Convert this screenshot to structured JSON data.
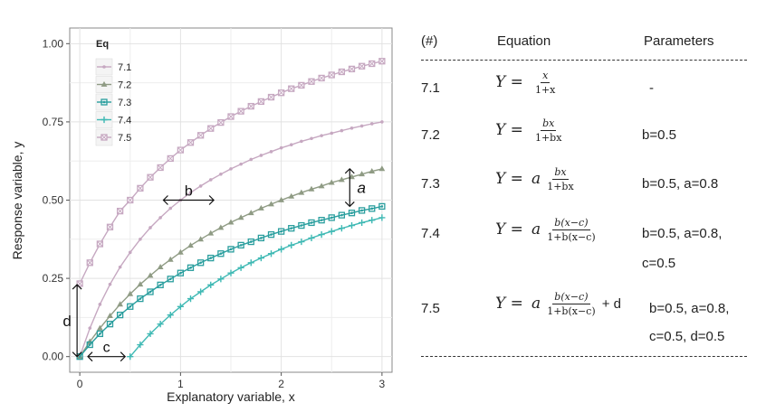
{
  "chart_data": {
    "type": "line",
    "xlabel": "Explanatory variable, x",
    "ylabel": "Response variable, y",
    "xlim": [
      -0.1,
      3.1
    ],
    "ylim": [
      -0.05,
      1.05
    ],
    "x_ticks": [
      "0",
      "1",
      "2",
      "3"
    ],
    "y_ticks": [
      "0.00",
      "0.25",
      "0.50",
      "0.75",
      "1.00"
    ],
    "grid": true,
    "legend_title": "Eq",
    "legend_position": "top-left",
    "series": [
      {
        "name": "7.1",
        "color": "#c6a8c1",
        "marker": "dot",
        "x": [
          0,
          0.1,
          0.2,
          0.3,
          0.4,
          0.5,
          0.6,
          0.7,
          0.8,
          0.9,
          1.0,
          1.1,
          1.2,
          1.3,
          1.4,
          1.5,
          1.6,
          1.7,
          1.8,
          1.9,
          2.0,
          2.1,
          2.2,
          2.3,
          2.4,
          2.5,
          2.6,
          2.7,
          2.8,
          2.9,
          3.0
        ],
        "y": [
          0.0,
          0.091,
          0.167,
          0.231,
          0.286,
          0.333,
          0.375,
          0.412,
          0.444,
          0.474,
          0.5,
          0.524,
          0.545,
          0.565,
          0.583,
          0.6,
          0.615,
          0.63,
          0.643,
          0.655,
          0.667,
          0.677,
          0.688,
          0.697,
          0.706,
          0.714,
          0.722,
          0.73,
          0.737,
          0.744,
          0.75
        ]
      },
      {
        "name": "7.2",
        "color": "#8f9b84",
        "marker": "triangle",
        "x": [
          0,
          0.1,
          0.2,
          0.3,
          0.4,
          0.5,
          0.6,
          0.7,
          0.8,
          0.9,
          1.0,
          1.1,
          1.2,
          1.3,
          1.4,
          1.5,
          1.6,
          1.7,
          1.8,
          1.9,
          2.0,
          2.1,
          2.2,
          2.3,
          2.4,
          2.5,
          2.6,
          2.7,
          2.8,
          2.9,
          3.0
        ],
        "y": [
          0.0,
          0.048,
          0.091,
          0.13,
          0.167,
          0.2,
          0.231,
          0.259,
          0.286,
          0.31,
          0.333,
          0.355,
          0.375,
          0.394,
          0.412,
          0.429,
          0.444,
          0.459,
          0.474,
          0.487,
          0.5,
          0.512,
          0.524,
          0.535,
          0.545,
          0.556,
          0.565,
          0.574,
          0.583,
          0.592,
          0.6
        ]
      },
      {
        "name": "7.3",
        "color": "#2a9e9e",
        "marker": "square-dot",
        "x": [
          0,
          0.1,
          0.2,
          0.3,
          0.4,
          0.5,
          0.6,
          0.7,
          0.8,
          0.9,
          1.0,
          1.1,
          1.2,
          1.3,
          1.4,
          1.5,
          1.6,
          1.7,
          1.8,
          1.9,
          2.0,
          2.1,
          2.2,
          2.3,
          2.4,
          2.5,
          2.6,
          2.7,
          2.8,
          2.9,
          3.0
        ],
        "y": [
          0.0,
          0.038,
          0.073,
          0.104,
          0.133,
          0.16,
          0.185,
          0.207,
          0.229,
          0.248,
          0.267,
          0.284,
          0.3,
          0.315,
          0.329,
          0.343,
          0.356,
          0.367,
          0.379,
          0.39,
          0.4,
          0.41,
          0.419,
          0.428,
          0.436,
          0.444,
          0.452,
          0.459,
          0.467,
          0.473,
          0.48
        ]
      },
      {
        "name": "7.4",
        "color": "#3fb9b4",
        "marker": "plus",
        "x": [
          0.5,
          0.6,
          0.7,
          0.8,
          0.9,
          1.0,
          1.1,
          1.2,
          1.3,
          1.4,
          1.5,
          1.6,
          1.7,
          1.8,
          1.9,
          2.0,
          2.1,
          2.2,
          2.3,
          2.4,
          2.5,
          2.6,
          2.7,
          2.8,
          2.9,
          3.0
        ],
        "y": [
          0.0,
          0.038,
          0.073,
          0.104,
          0.133,
          0.16,
          0.185,
          0.207,
          0.229,
          0.248,
          0.267,
          0.284,
          0.3,
          0.315,
          0.329,
          0.343,
          0.356,
          0.367,
          0.379,
          0.39,
          0.4,
          0.41,
          0.419,
          0.428,
          0.436,
          0.444
        ]
      },
      {
        "name": "7.5",
        "color": "#c6a8c1",
        "marker": "square-x",
        "x": [
          0,
          0.1,
          0.2,
          0.3,
          0.4,
          0.5,
          0.6,
          0.7,
          0.8,
          0.9,
          1.0,
          1.1,
          1.2,
          1.3,
          1.4,
          1.5,
          1.6,
          1.7,
          1.8,
          1.9,
          2.0,
          2.1,
          2.2,
          2.3,
          2.4,
          2.5,
          2.6,
          2.7,
          2.8,
          2.9,
          3.0
        ],
        "y": [
          0.233,
          0.3,
          0.36,
          0.414,
          0.465,
          0.5,
          0.538,
          0.573,
          0.604,
          0.633,
          0.66,
          0.684,
          0.707,
          0.729,
          0.748,
          0.767,
          0.784,
          0.8,
          0.815,
          0.829,
          0.843,
          0.856,
          0.867,
          0.879,
          0.89,
          0.9,
          0.91,
          0.919,
          0.928,
          0.936,
          0.944
        ]
      }
    ],
    "annotations": [
      {
        "label": "a",
        "x": 2.68,
        "y_from": 0.48,
        "y_to": 0.6
      },
      {
        "label": "b",
        "x_from": 0.83,
        "x_to": 1.33,
        "y": 0.5
      },
      {
        "label": "c",
        "x_from": 0.08,
        "x_to": 0.45,
        "y": 0.0
      },
      {
        "label": "d",
        "x": 0.0,
        "y_from": 0.0,
        "y_to": 0.23
      }
    ]
  },
  "equation_table": {
    "headers": {
      "id": "(#)",
      "equation": "Equation",
      "params": "Parameters"
    },
    "rows": [
      {
        "id": "7.1",
        "params1": "-",
        "params2": ""
      },
      {
        "id": "7.2",
        "params1": "b=0.5",
        "params2": ""
      },
      {
        "id": "7.3",
        "params1": "b=0.5, a=0.8",
        "params2": ""
      },
      {
        "id": "7.4",
        "params1": "b=0.5, a=0.8,",
        "params2": "c=0.5"
      },
      {
        "id": "7.5",
        "params1": "b=0.5, a=0.8,",
        "params2": "c=0.5, d=0.5"
      }
    ],
    "eq": {
      "y": "Y =",
      "a": "a",
      "plus_d": "+ d",
      "e1_num": "x",
      "e1_den": "1+x",
      "e2_num": "bx",
      "e2_den": "1+bx",
      "e3_num": "bx",
      "e3_den": "1+bx",
      "e4_num": "b(x−c)",
      "e4_den": "1+b(x−c)",
      "e5_num": "b(x−c)",
      "e5_den": "1+b(x−c)"
    }
  }
}
